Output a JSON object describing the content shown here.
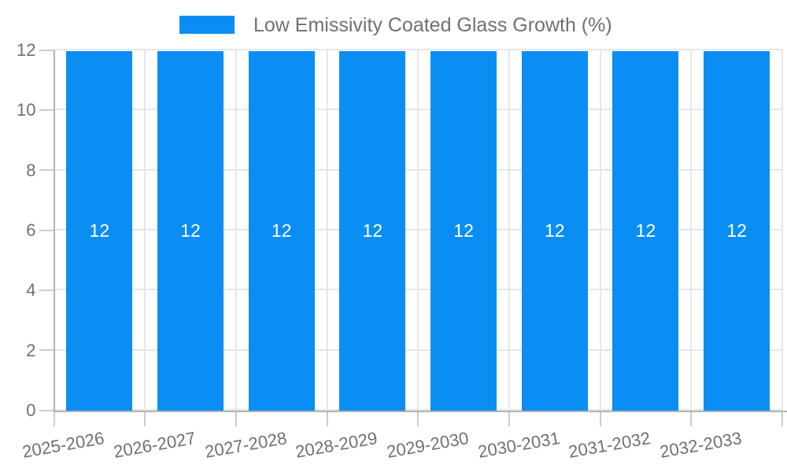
{
  "legend": {
    "position": "top-center"
  },
  "chart_data": {
    "type": "bar",
    "title": "",
    "xlabel": "",
    "ylabel": "",
    "categories": [
      "2025-2026",
      "2026-2027",
      "2027-2028",
      "2028-2029",
      "2029-2030",
      "2030-2031",
      "2031-2032",
      "2032-2033"
    ],
    "series": [
      {
        "name": "Low Emissivity Coated Glass Growth (%)",
        "values": [
          12,
          12,
          12,
          12,
          12,
          12,
          12,
          12
        ]
      }
    ],
    "bar_value_labels": [
      "12",
      "12",
      "12",
      "12",
      "12",
      "12",
      "12",
      "12"
    ],
    "ylim": [
      0,
      12
    ],
    "yticks": [
      0,
      2,
      4,
      6,
      8,
      10,
      12
    ],
    "grid": {
      "horizontal": true,
      "vertical": true
    },
    "legend_position": "top-center",
    "colors": {
      "bar": "#0a8ef4",
      "bar_label_text": "#ffffff",
      "axis_text": "#707070",
      "legend_text": "#707070",
      "gridline": "#e6e6e6",
      "axis_line": "#b3b3b3",
      "tick": "#cccccc",
      "background": "#ffffff"
    }
  }
}
